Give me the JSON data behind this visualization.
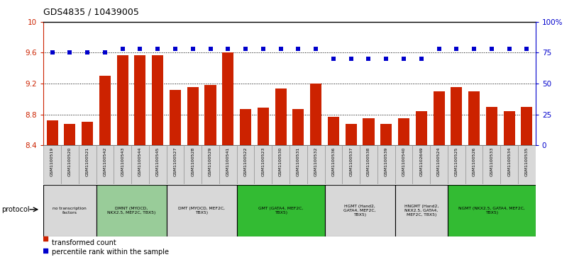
{
  "title": "GDS4835 / 10439005",
  "samples": [
    "GSM1100519",
    "GSM1100520",
    "GSM1100521",
    "GSM1100542",
    "GSM1100543",
    "GSM1100544",
    "GSM1100545",
    "GSM1100527",
    "GSM1100528",
    "GSM1100529",
    "GSM1100541",
    "GSM1100522",
    "GSM1100523",
    "GSM1100530",
    "GSM1100531",
    "GSM1100532",
    "GSM1100536",
    "GSM1100537",
    "GSM1100538",
    "GSM1100539",
    "GSM1100540",
    "GSM1102649",
    "GSM1100524",
    "GSM1100525",
    "GSM1100526",
    "GSM1100533",
    "GSM1100534",
    "GSM1100535"
  ],
  "bar_values": [
    8.72,
    8.68,
    8.7,
    9.3,
    9.57,
    9.57,
    9.57,
    9.12,
    9.15,
    9.18,
    9.6,
    8.87,
    8.89,
    9.14,
    8.87,
    9.2,
    8.77,
    8.68,
    8.75,
    8.68,
    8.75,
    8.84,
    9.1,
    9.15,
    9.1,
    8.9,
    8.84,
    8.9
  ],
  "percentile_values": [
    75,
    75,
    75,
    75,
    78,
    78,
    78,
    78,
    78,
    78,
    78,
    78,
    78,
    78,
    78,
    78,
    70,
    70,
    70,
    70,
    70,
    70,
    78,
    78,
    78,
    78,
    78,
    78
  ],
  "ylim_left": [
    8.4,
    10.0
  ],
  "ylim_right": [
    0,
    100
  ],
  "yticks_left": [
    8.4,
    8.8,
    9.2,
    9.6,
    10.0
  ],
  "ytick_labels_left": [
    "8.4",
    "8.8",
    "9.2",
    "9.6",
    "10"
  ],
  "yticks_right": [
    0,
    25,
    50,
    75,
    100
  ],
  "ytick_labels_right": [
    "0",
    "25",
    "50",
    "75",
    "100%"
  ],
  "bar_color": "#cc2200",
  "dot_color": "#0000cc",
  "protocol_groups": [
    {
      "label": "no transcription\nfactors",
      "start": 0,
      "end": 3,
      "color": "#d8d8d8"
    },
    {
      "label": "DMNT (MYOCD,\nNKX2.5, MEF2C, TBX5)",
      "start": 3,
      "end": 7,
      "color": "#99cc99"
    },
    {
      "label": "DMT (MYOCD, MEF2C,\nTBX5)",
      "start": 7,
      "end": 11,
      "color": "#d8d8d8"
    },
    {
      "label": "GMT (GATA4, MEF2C,\nTBX5)",
      "start": 11,
      "end": 16,
      "color": "#33bb33"
    },
    {
      "label": "HGMT (Hand2,\nGATA4, MEF2C,\nTBX5)",
      "start": 16,
      "end": 20,
      "color": "#d8d8d8"
    },
    {
      "label": "HNGMT (Hand2,\nNKX2.5, GATA4,\nMEF2C, TBX5)",
      "start": 20,
      "end": 23,
      "color": "#d8d8d8"
    },
    {
      "label": "NGMT (NKX2.5, GATA4, MEF2C,\nTBX5)",
      "start": 23,
      "end": 28,
      "color": "#33bb33"
    }
  ],
  "protocol_label": "protocol",
  "legend_bar_label": "transformed count",
  "legend_dot_label": "percentile rank within the sample"
}
